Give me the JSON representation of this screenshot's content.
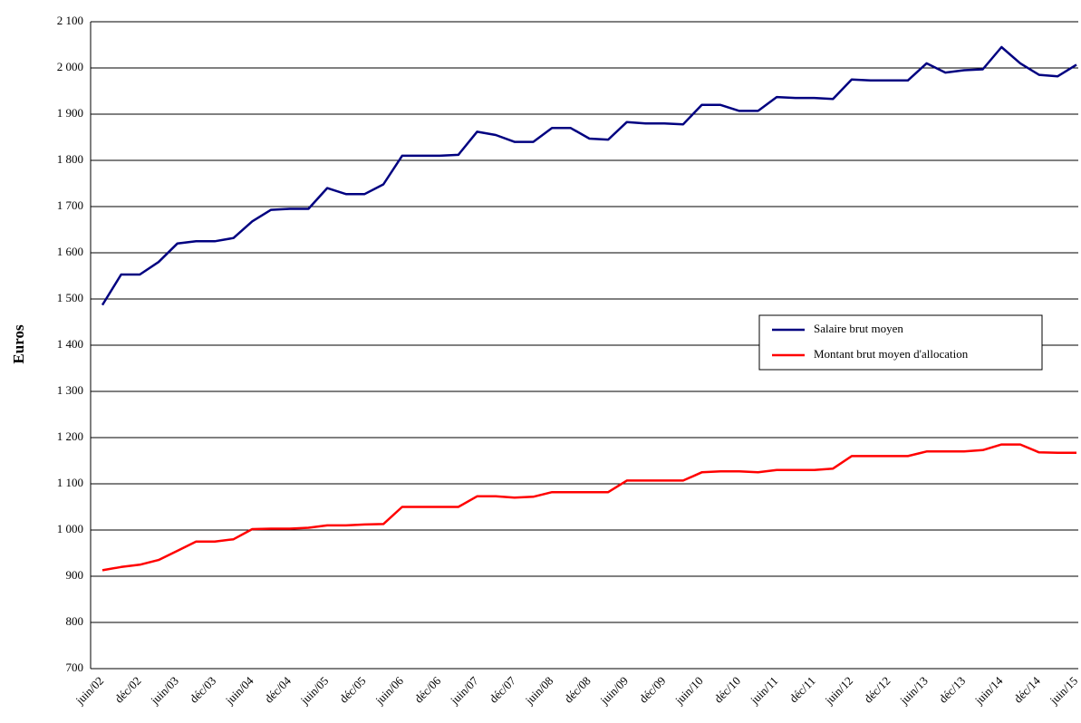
{
  "chart_data": {
    "type": "line",
    "y_label": "Euros",
    "categories": [
      "juin/02",
      null,
      "déc/02",
      null,
      "juin/03",
      null,
      "déc/03",
      null,
      "juin/04",
      null,
      "déc/04",
      null,
      "juin/05",
      null,
      "déc/05",
      null,
      "juin/06",
      null,
      "déc/06",
      null,
      "juin/07",
      null,
      "déc/07",
      null,
      "juin/08",
      null,
      "déc/08",
      null,
      "juin/09",
      null,
      "déc/09",
      null,
      "juin/10",
      null,
      "déc/10",
      null,
      "juin/11",
      null,
      "déc/11",
      null,
      "juin/12",
      null,
      "déc/12",
      null,
      "juin/13",
      null,
      "déc/13",
      null,
      "juin/14",
      null,
      "déc/14",
      null,
      "juin/15"
    ],
    "series": [
      {
        "name": "Salaire brut moyen",
        "color": "#000080",
        "values": [
          1487,
          1553,
          1553,
          1580,
          1620,
          1625,
          1625,
          1632,
          1668,
          1693,
          1695,
          1695,
          1740,
          1727,
          1727,
          1748,
          1810,
          1810,
          1810,
          1812,
          1862,
          1855,
          1840,
          1840,
          1870,
          1870,
          1847,
          1845,
          1883,
          1880,
          1880,
          1878,
          1920,
          1920,
          1907,
          1907,
          1937,
          1935,
          1935,
          1933,
          1975,
          1973,
          1973,
          1973,
          2010,
          1990,
          1995,
          1997,
          2045,
          2010,
          1985,
          1982,
          2007
        ]
      },
      {
        "name": "Montant brut moyen d'allocation",
        "color": "#ff0000",
        "values": [
          913,
          920,
          925,
          935,
          955,
          975,
          975,
          980,
          1002,
          1003,
          1003,
          1005,
          1010,
          1010,
          1012,
          1013,
          1050,
          1050,
          1050,
          1050,
          1073,
          1073,
          1070,
          1072,
          1082,
          1082,
          1082,
          1082,
          1107,
          1107,
          1107,
          1107,
          1125,
          1127,
          1127,
          1125,
          1130,
          1130,
          1130,
          1133,
          1160,
          1160,
          1160,
          1160,
          1170,
          1170,
          1170,
          1173,
          1185,
          1185,
          1168,
          1167,
          1167
        ]
      }
    ],
    "ylim": [
      700,
      2100
    ],
    "yticks": [
      {
        "value": 700,
        "label": "700"
      },
      {
        "value": 800,
        "label": "800"
      },
      {
        "value": 900,
        "label": "900"
      },
      {
        "value": 1000,
        "label": "1 000"
      },
      {
        "value": 1100,
        "label": "1 100"
      },
      {
        "value": 1200,
        "label": "1 200"
      },
      {
        "value": 1300,
        "label": "1 300"
      },
      {
        "value": 1400,
        "label": "1 400"
      },
      {
        "value": 1500,
        "label": "1 500"
      },
      {
        "value": 1600,
        "label": "1 600"
      },
      {
        "value": 1700,
        "label": "1 700"
      },
      {
        "value": 1800,
        "label": "1 800"
      },
      {
        "value": 1900,
        "label": "1 900"
      },
      {
        "value": 2000,
        "label": "2 000"
      },
      {
        "value": 2100,
        "label": "2 100"
      }
    ],
    "grid": true
  }
}
